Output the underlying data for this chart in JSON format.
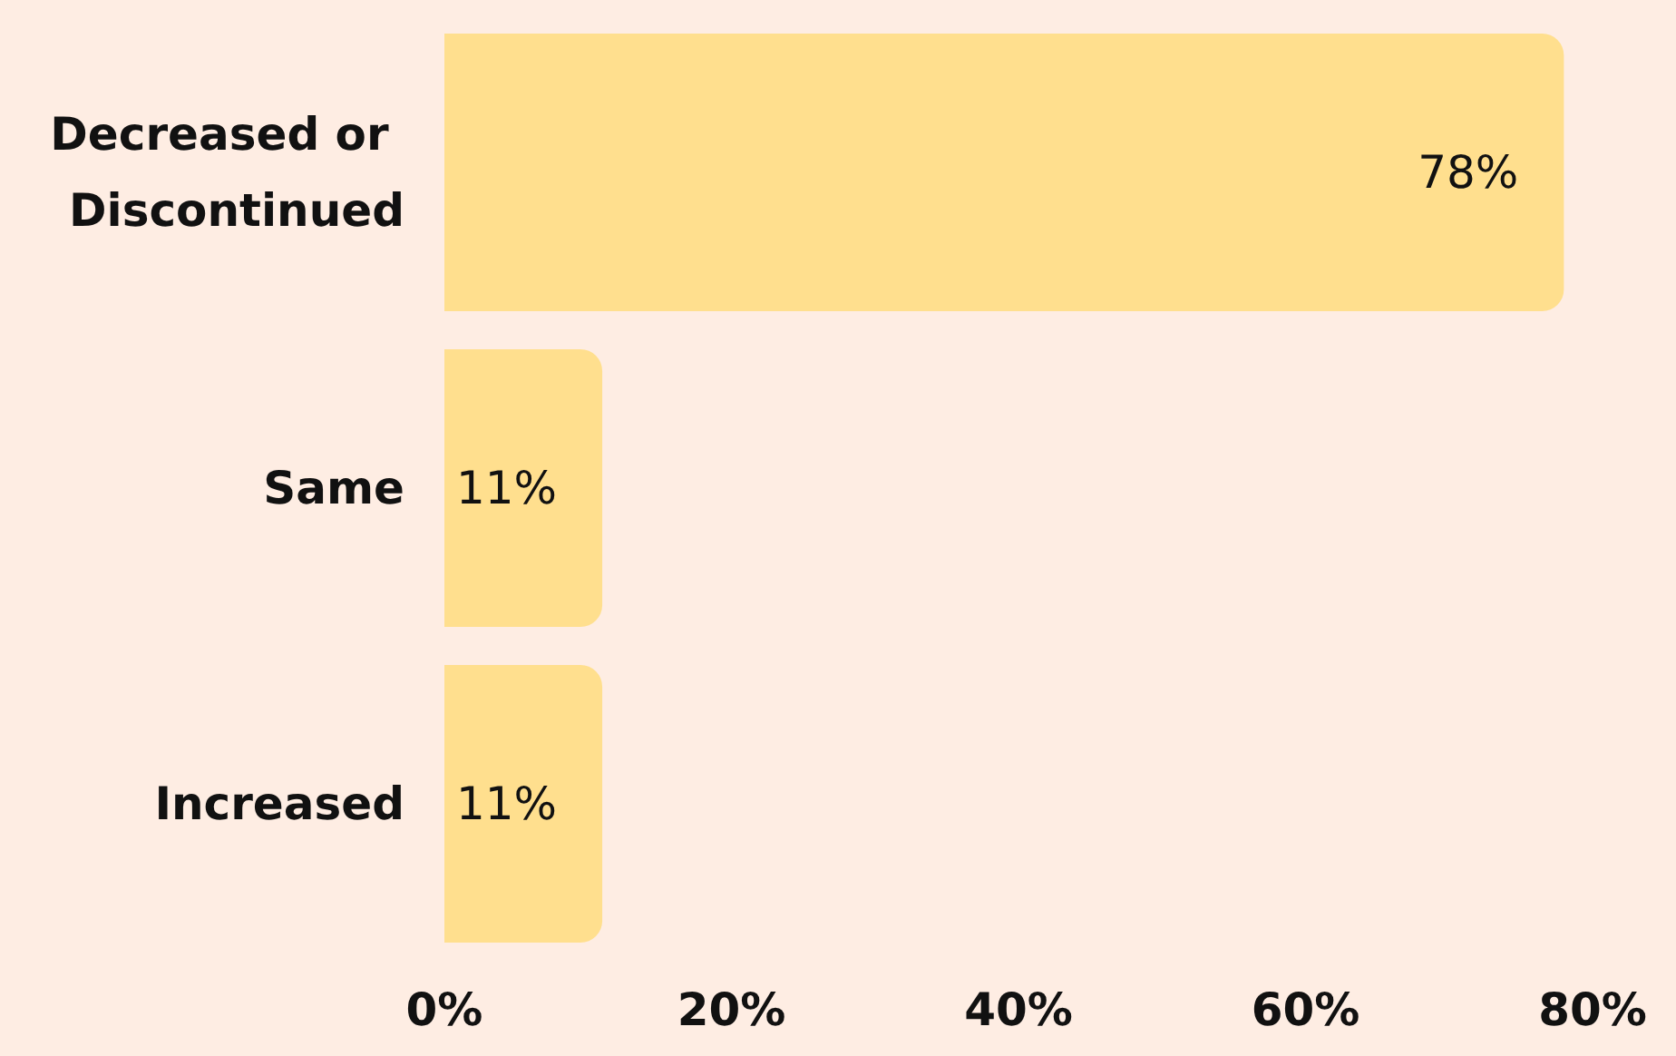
{
  "chart_data": {
    "type": "bar",
    "orientation": "horizontal",
    "categories": [
      "Decreased or Discontinued",
      "Same",
      "Increased"
    ],
    "values": [
      78,
      11,
      11
    ],
    "color": "#ffdf8e",
    "value_labels": [
      "78%",
      "11%",
      "11%"
    ],
    "xlim": [
      0,
      80
    ],
    "xticks": [
      {
        "value": 0,
        "label": "0%"
      },
      {
        "value": 20,
        "label": "20%"
      },
      {
        "value": 40,
        "label": "40%"
      },
      {
        "value": 60,
        "label": "60%"
      },
      {
        "value": 80,
        "label": "80%"
      }
    ],
    "grid": false
  }
}
